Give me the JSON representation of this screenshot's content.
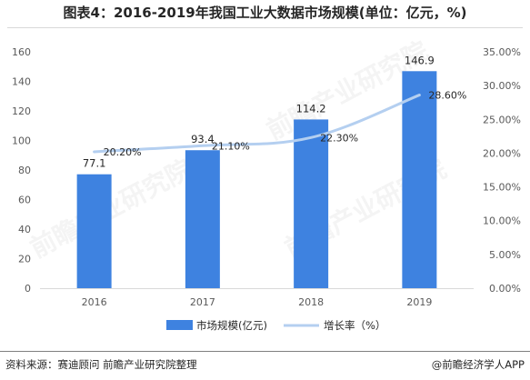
{
  "title": "图表4：2016-2019年我国工业大数据市场规模(单位：亿元，%)",
  "chart_data": {
    "type": "bar",
    "categories": [
      "2016",
      "2017",
      "2018",
      "2019"
    ],
    "series": [
      {
        "name": "市场规模(亿元)",
        "type": "bar",
        "axis": "left",
        "values": [
          77.1,
          93.4,
          114.2,
          146.9
        ],
        "labels": [
          "77.1",
          "93.4",
          "114.2",
          "146.9"
        ],
        "color": "#3e82e0"
      },
      {
        "name": "增长率（%）",
        "type": "line",
        "axis": "right",
        "values": [
          20.2,
          21.1,
          22.3,
          28.6
        ],
        "labels": [
          "20.20%",
          "21.10%",
          "22.30%",
          "28.60%"
        ],
        "color": "#b4cff0"
      }
    ],
    "y_left": {
      "min": 0,
      "max": 160,
      "ticks": [
        "0",
        "20",
        "40",
        "60",
        "80",
        "100",
        "120",
        "140",
        "160"
      ]
    },
    "y_right": {
      "min": 0,
      "max": 35,
      "ticks": [
        "0.00%",
        "5.00%",
        "10.00%",
        "15.00%",
        "20.00%",
        "25.00%",
        "30.00%",
        "35.00%"
      ]
    },
    "grid": false,
    "legend_position": "bottom"
  },
  "watermark": "前瞻产业研究院",
  "footer": {
    "source": "资料来源：赛迪顾问 前瞻产业研究院整理",
    "credit": "@前瞻经济学人APP"
  }
}
